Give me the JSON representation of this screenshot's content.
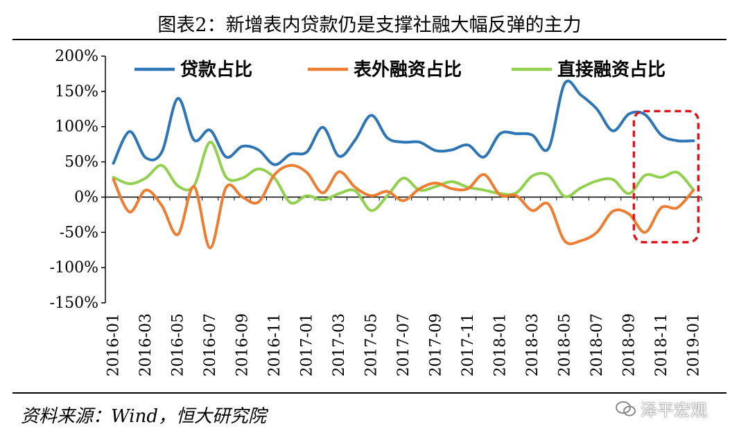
{
  "title": "图表2：新增表内贷款仍是支撑社融大幅反弹的主力",
  "source": "资料来源：Wind，恒大研究院",
  "watermark": "泽平宏观",
  "colors": {
    "loans": "#2E75B6",
    "offbalance": "#ED7D31",
    "direct": "#92D050",
    "highlight": "#E0141E"
  },
  "chart_data": {
    "type": "line",
    "ylim": [
      -150,
      200
    ],
    "yticks": [
      -150,
      -100,
      -50,
      0,
      50,
      100,
      150,
      200
    ],
    "ytick_labels": [
      "-150%",
      "-100%",
      "-50%",
      "0%",
      "50%",
      "100%",
      "150%",
      "200%"
    ],
    "xtick_labels": [
      "2016-01",
      "2016-03",
      "2016-05",
      "2016-07",
      "2016-09",
      "2016-11",
      "2017-01",
      "2017-03",
      "2017-05",
      "2017-07",
      "2017-09",
      "2017-11",
      "2018-01",
      "2018-03",
      "2018-05",
      "2018-07",
      "2018-09",
      "2018-11",
      "2019-01"
    ],
    "x": [
      "2016-01",
      "2016-02",
      "2016-03",
      "2016-04",
      "2016-05",
      "2016-06",
      "2016-07",
      "2016-08",
      "2016-09",
      "2016-10",
      "2016-11",
      "2016-12",
      "2017-01",
      "2017-02",
      "2017-03",
      "2017-04",
      "2017-05",
      "2017-06",
      "2017-07",
      "2017-08",
      "2017-09",
      "2017-10",
      "2017-11",
      "2017-12",
      "2018-01",
      "2018-02",
      "2018-03",
      "2018-04",
      "2018-05",
      "2018-06",
      "2018-07",
      "2018-08",
      "2018-09",
      "2018-10",
      "2018-11",
      "2018-12",
      "2019-01"
    ],
    "series": [
      {
        "name": "贷款占比",
        "values": [
          48,
          93,
          56,
          64,
          140,
          81,
          95,
          57,
          72,
          67,
          46,
          61,
          64,
          99,
          58,
          81,
          116,
          84,
          78,
          78,
          66,
          67,
          74,
          57,
          90,
          90,
          88,
          69,
          161,
          145,
          125,
          94,
          118,
          117,
          88,
          80,
          80
        ]
      },
      {
        "name": "表外融资占比",
        "values": [
          25,
          -21,
          10,
          -12,
          -53,
          15,
          -72,
          14,
          0,
          -7,
          32,
          45,
          35,
          6,
          36,
          14,
          2,
          8,
          -5,
          12,
          20,
          12,
          12,
          32,
          3,
          2,
          -19,
          -10,
          -62,
          -62,
          -50,
          -20,
          -24,
          -50,
          -15,
          -15,
          10
        ]
      },
      {
        "name": "直接融资占比",
        "values": [
          28,
          19,
          27,
          45,
          16,
          16,
          78,
          28,
          27,
          40,
          27,
          -8,
          2,
          -4,
          5,
          9,
          -19,
          2,
          27,
          10,
          15,
          22,
          14,
          10,
          5,
          6,
          30,
          31,
          1,
          13,
          23,
          25,
          5,
          31,
          28,
          35,
          10
        ]
      }
    ],
    "legend_position": "top",
    "highlight_range": [
      "2018-10",
      "2019-01"
    ]
  }
}
